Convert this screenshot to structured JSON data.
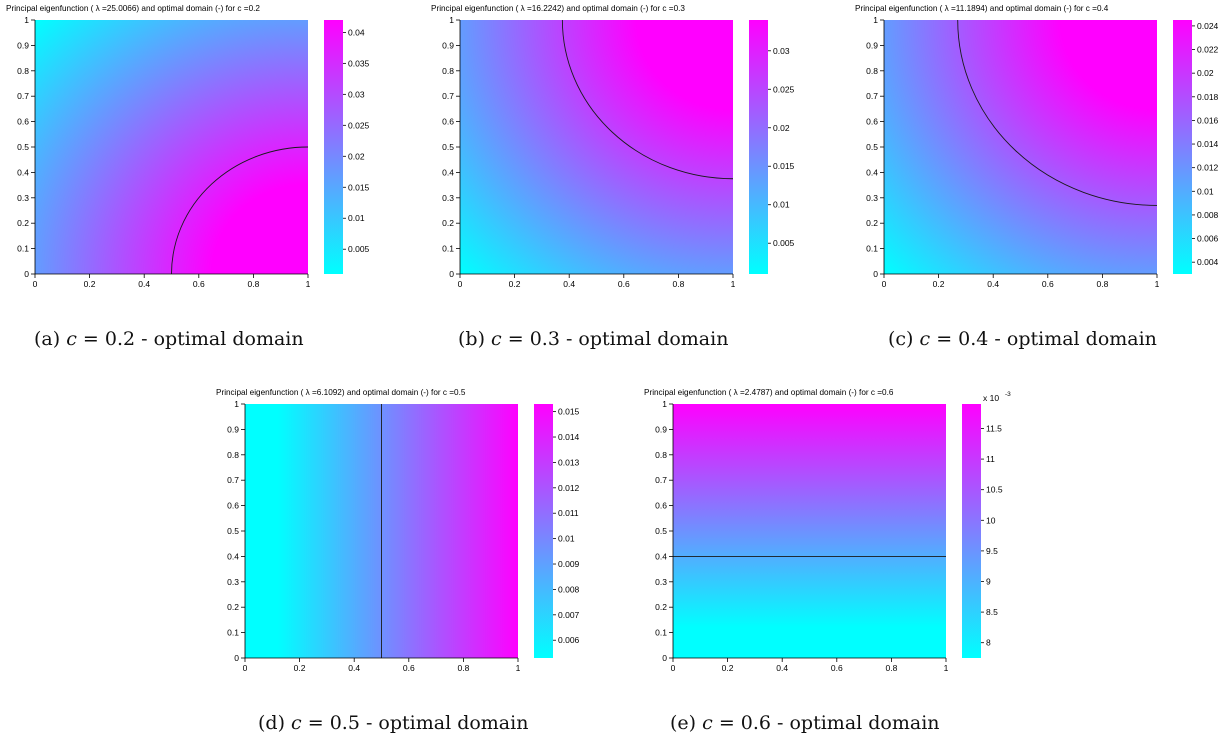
{
  "figure": {
    "colors": {
      "low": "#00ffff",
      "high": "#ff00ff",
      "contour": "#1a1a1a",
      "axis": "#000000"
    },
    "subfigures": [
      {
        "id": "a",
        "caption_prefix": "(a)",
        "caption_var": "c",
        "caption_rest": " = 0.2 - optimal domain",
        "chart_data": {
          "type": "heatmap",
          "title": "Principal eigenfunction (  λ =25.0066) and optimal domain (-) for c =0.2",
          "c": 0.2,
          "lambda": 25.0066,
          "field": "radial-corner-10",
          "contour": {
            "shape": "quarter-circle",
            "center": [
              1,
              0
            ],
            "radius": 0.5
          },
          "xlim": [
            0,
            1
          ],
          "ylim": [
            0,
            1
          ],
          "xticks": [
            "0",
            "0.2",
            "0.4",
            "0.6",
            "0.8",
            "1"
          ],
          "yticks": [
            "0",
            "0.1",
            "0.2",
            "0.3",
            "0.4",
            "0.5",
            "0.6",
            "0.7",
            "0.8",
            "0.9",
            "1"
          ],
          "colorbar": {
            "range": [
              0.001,
              0.042
            ],
            "ticks": [
              0.005,
              0.01,
              0.015,
              0.02,
              0.025,
              0.03,
              0.035,
              0.04
            ],
            "tick_labels": [
              "0.005",
              "0.01",
              "0.015",
              "0.02",
              "0.025",
              "0.03",
              "0.035",
              "0.04"
            ],
            "exponent": ""
          }
        }
      },
      {
        "id": "b",
        "caption_prefix": "(b)",
        "caption_var": "c",
        "caption_rest": " = 0.3 - optimal domain",
        "chart_data": {
          "type": "heatmap",
          "title": "Principal eigenfunction (  λ =16.2242) and optimal domain (-) for c =0.3",
          "c": 0.3,
          "lambda": 16.2242,
          "field": "radial-corner-11",
          "contour": {
            "shape": "quarter-circle",
            "center": [
              1,
              1
            ],
            "radius": 0.625
          },
          "xlim": [
            0,
            1
          ],
          "ylim": [
            0,
            1
          ],
          "xticks": [
            "0",
            "0.2",
            "0.4",
            "0.6",
            "0.8",
            "1"
          ],
          "yticks": [
            "0",
            "0.1",
            "0.2",
            "0.3",
            "0.4",
            "0.5",
            "0.6",
            "0.7",
            "0.8",
            "0.9",
            "1"
          ],
          "colorbar": {
            "range": [
              0.001,
              0.034
            ],
            "ticks": [
              0.005,
              0.01,
              0.015,
              0.02,
              0.025,
              0.03
            ],
            "tick_labels": [
              "0.005",
              "0.01",
              "0.015",
              "0.02",
              "0.025",
              "0.03"
            ],
            "exponent": ""
          }
        }
      },
      {
        "id": "c",
        "caption_prefix": "(c)",
        "caption_var": "c",
        "caption_rest": " = 0.4 - optimal domain",
        "chart_data": {
          "type": "heatmap",
          "title": "Principal eigenfunction (  λ =11.1894) and optimal domain (-) for c =0.4",
          "c": 0.4,
          "lambda": 11.1894,
          "field": "radial-corner-11",
          "contour": {
            "shape": "quarter-circle",
            "center": [
              1,
              1
            ],
            "radius": 0.73
          },
          "xlim": [
            0,
            1
          ],
          "ylim": [
            0,
            1
          ],
          "xticks": [
            "0",
            "0.2",
            "0.4",
            "0.6",
            "0.8",
            "1"
          ],
          "yticks": [
            "0",
            "0.1",
            "0.2",
            "0.3",
            "0.4",
            "0.5",
            "0.6",
            "0.7",
            "0.8",
            "0.9",
            "1"
          ],
          "colorbar": {
            "range": [
              0.003,
              0.0245
            ],
            "ticks": [
              0.004,
              0.006,
              0.008,
              0.01,
              0.012,
              0.014,
              0.016,
              0.018,
              0.02,
              0.022,
              0.024
            ],
            "tick_labels": [
              "0.004",
              "0.006",
              "0.008",
              "0.01",
              "0.012",
              "0.014",
              "0.016",
              "0.018",
              "0.02",
              "0.022",
              "0.024"
            ],
            "exponent": ""
          }
        }
      },
      {
        "id": "d",
        "caption_prefix": "(d)",
        "caption_var": "c",
        "caption_rest": " = 0.5 - optimal domain",
        "chart_data": {
          "type": "heatmap",
          "title": "Principal eigenfunction (  λ =6.1092) and optimal domain (-) for c =0.5",
          "c": 0.5,
          "lambda": 6.1092,
          "field": "horizontal",
          "contour": {
            "shape": "vertical-line",
            "x": 0.5
          },
          "xlim": [
            0,
            1
          ],
          "ylim": [
            0,
            1
          ],
          "xticks": [
            "0",
            "0.2",
            "0.4",
            "0.6",
            "0.8",
            "1"
          ],
          "yticks": [
            "0",
            "0.1",
            "0.2",
            "0.3",
            "0.4",
            "0.5",
            "0.6",
            "0.7",
            "0.8",
            "0.9",
            "1"
          ],
          "colorbar": {
            "range": [
              0.0053,
              0.0153
            ],
            "ticks": [
              0.006,
              0.007,
              0.008,
              0.009,
              0.01,
              0.011,
              0.012,
              0.013,
              0.014,
              0.015
            ],
            "tick_labels": [
              "0.006",
              "0.007",
              "0.008",
              "0.009",
              "0.01",
              "0.011",
              "0.012",
              "0.013",
              "0.014",
              "0.015"
            ],
            "exponent": ""
          }
        }
      },
      {
        "id": "e",
        "caption_prefix": "(e)",
        "caption_var": "c",
        "caption_rest": " = 0.6 - optimal domain",
        "chart_data": {
          "type": "heatmap",
          "title": "Principal eigenfunction (  λ =2.4787) and optimal domain (-) for c =0.6",
          "c": 0.6,
          "lambda": 2.4787,
          "field": "vertical",
          "contour": {
            "shape": "horizontal-line",
            "y": 0.4
          },
          "xlim": [
            0,
            1
          ],
          "ylim": [
            0,
            1
          ],
          "xticks": [
            "0",
            "0.2",
            "0.4",
            "0.6",
            "0.8",
            "1"
          ],
          "yticks": [
            "0",
            "0.1",
            "0.2",
            "0.3",
            "0.4",
            "0.5",
            "0.6",
            "0.7",
            "0.8",
            "0.9",
            "1"
          ],
          "colorbar": {
            "range": [
              7.75,
              11.9
            ],
            "ticks": [
              8,
              8.5,
              9,
              9.5,
              10,
              10.5,
              11,
              11.5
            ],
            "tick_labels": [
              "8",
              "8.5",
              "9",
              "9.5",
              "10",
              "10.5",
              "11",
              "11.5"
            ],
            "exponent": "x 10"
          }
        }
      }
    ]
  }
}
